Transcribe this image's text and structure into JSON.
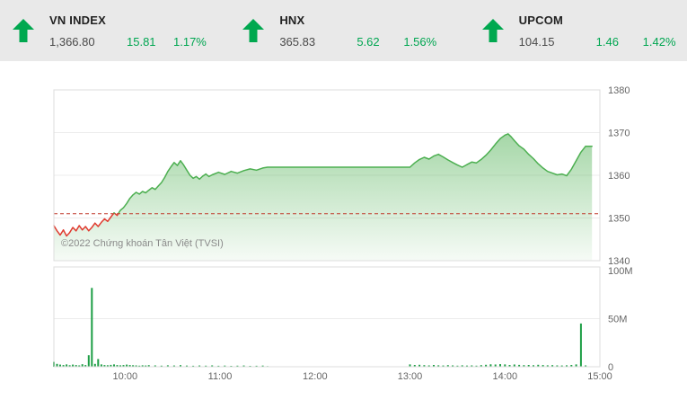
{
  "header": {
    "arrow_color": "#00a84f",
    "text_green": "#00a651",
    "indices": [
      {
        "name": "VN INDEX",
        "value": "1,366.80",
        "change": "15.81",
        "percent": "1.17%",
        "direction": "up"
      },
      {
        "name": "HNX",
        "value": "365.83",
        "change": "5.62",
        "percent": "1.56%",
        "direction": "up"
      },
      {
        "name": "UPCOM",
        "value": "104.15",
        "change": "1.46",
        "percent": "1.42%",
        "direction": "up"
      }
    ]
  },
  "watermark": "©2022 Chứng khoán Tân Việt (TVSI)",
  "chart_data": {
    "type": "area",
    "x_axis": {
      "total_minutes": 345,
      "ticks": [
        {
          "label": "10:00",
          "minutes": 45
        },
        {
          "label": "11:00",
          "minutes": 105
        },
        {
          "label": "12:00",
          "minutes": 165
        },
        {
          "label": "13:00",
          "minutes": 225
        },
        {
          "label": "14:00",
          "minutes": 285
        },
        {
          "label": "15:00",
          "minutes": 345
        }
      ]
    },
    "price_axis": {
      "min": 1340,
      "max": 1380,
      "ticks": [
        1340,
        1350,
        1360,
        1370,
        1380
      ]
    },
    "volume_axis": {
      "max": 100,
      "ticks": [
        {
          "label": "0",
          "value": 0
        },
        {
          "label": "50M",
          "value": 50
        },
        {
          "label": "100M",
          "value": 100
        }
      ]
    },
    "reference_price": 1350.99,
    "close_value": 1366.8,
    "price_series": [
      [
        0,
        1348.2
      ],
      [
        2,
        1347.0
      ],
      [
        4,
        1346.0
      ],
      [
        6,
        1347.2
      ],
      [
        8,
        1345.8
      ],
      [
        10,
        1346.6
      ],
      [
        12,
        1347.8
      ],
      [
        14,
        1347.0
      ],
      [
        16,
        1348.2
      ],
      [
        18,
        1347.2
      ],
      [
        20,
        1348.0
      ],
      [
        22,
        1347.0
      ],
      [
        24,
        1347.8
      ],
      [
        26,
        1348.8
      ],
      [
        28,
        1348.0
      ],
      [
        30,
        1349.0
      ],
      [
        32,
        1349.8
      ],
      [
        34,
        1349.2
      ],
      [
        36,
        1350.2
      ],
      [
        38,
        1351.2
      ],
      [
        40,
        1350.6
      ],
      [
        42,
        1351.8
      ],
      [
        44,
        1352.4
      ],
      [
        46,
        1353.4
      ],
      [
        48,
        1354.6
      ],
      [
        50,
        1355.4
      ],
      [
        52,
        1356.0
      ],
      [
        54,
        1355.6
      ],
      [
        56,
        1356.2
      ],
      [
        58,
        1355.9
      ],
      [
        60,
        1356.5
      ],
      [
        62,
        1357.1
      ],
      [
        64,
        1356.7
      ],
      [
        66,
        1357.5
      ],
      [
        68,
        1358.3
      ],
      [
        70,
        1359.5
      ],
      [
        72,
        1360.9
      ],
      [
        74,
        1362.0
      ],
      [
        76,
        1363.0
      ],
      [
        78,
        1362.3
      ],
      [
        80,
        1363.4
      ],
      [
        82,
        1362.4
      ],
      [
        84,
        1361.2
      ],
      [
        86,
        1360.0
      ],
      [
        88,
        1359.3
      ],
      [
        90,
        1359.7
      ],
      [
        92,
        1359.1
      ],
      [
        94,
        1359.8
      ],
      [
        96,
        1360.3
      ],
      [
        98,
        1359.7
      ],
      [
        100,
        1360.1
      ],
      [
        104,
        1360.7
      ],
      [
        108,
        1360.2
      ],
      [
        112,
        1360.9
      ],
      [
        116,
        1360.5
      ],
      [
        120,
        1361.1
      ],
      [
        124,
        1361.5
      ],
      [
        128,
        1361.2
      ],
      [
        132,
        1361.7
      ],
      [
        135,
        1361.9
      ],
      [
        225,
        1361.9
      ],
      [
        228,
        1362.9
      ],
      [
        231,
        1363.7
      ],
      [
        234,
        1364.2
      ],
      [
        237,
        1363.8
      ],
      [
        240,
        1364.5
      ],
      [
        243,
        1364.9
      ],
      [
        246,
        1364.3
      ],
      [
        249,
        1363.6
      ],
      [
        252,
        1363.0
      ],
      [
        255,
        1362.4
      ],
      [
        258,
        1361.9
      ],
      [
        261,
        1362.5
      ],
      [
        264,
        1363.1
      ],
      [
        267,
        1362.9
      ],
      [
        270,
        1363.7
      ],
      [
        273,
        1364.7
      ],
      [
        276,
        1365.9
      ],
      [
        279,
        1367.3
      ],
      [
        282,
        1368.6
      ],
      [
        285,
        1369.4
      ],
      [
        287,
        1369.7
      ],
      [
        289,
        1369.0
      ],
      [
        291,
        1368.1
      ],
      [
        294,
        1366.9
      ],
      [
        297,
        1366.1
      ],
      [
        300,
        1364.9
      ],
      [
        303,
        1363.9
      ],
      [
        306,
        1362.7
      ],
      [
        309,
        1361.7
      ],
      [
        312,
        1360.9
      ],
      [
        315,
        1360.5
      ],
      [
        318,
        1360.1
      ],
      [
        321,
        1360.3
      ],
      [
        324,
        1359.9
      ],
      [
        327,
        1361.4
      ],
      [
        330,
        1363.4
      ],
      [
        333,
        1365.4
      ],
      [
        336,
        1366.8
      ],
      [
        340,
        1366.8
      ]
    ],
    "volume_series": [
      [
        0,
        5
      ],
      [
        2,
        3
      ],
      [
        4,
        2.2
      ],
      [
        6,
        1.8
      ],
      [
        8,
        2.4
      ],
      [
        10,
        1.6
      ],
      [
        12,
        2.2
      ],
      [
        14,
        1.8
      ],
      [
        16,
        1.4
      ],
      [
        18,
        2.6
      ],
      [
        20,
        1.8
      ],
      [
        22,
        12
      ],
      [
        24,
        82
      ],
      [
        26,
        3
      ],
      [
        28,
        8
      ],
      [
        30,
        2.4
      ],
      [
        32,
        1.8
      ],
      [
        34,
        1.6
      ],
      [
        36,
        2
      ],
      [
        38,
        2.4
      ],
      [
        40,
        1.8
      ],
      [
        42,
        1.5
      ],
      [
        44,
        1.8
      ],
      [
        46,
        2.2
      ],
      [
        48,
        1.8
      ],
      [
        50,
        1.6
      ],
      [
        52,
        1.4
      ],
      [
        54,
        1.1
      ],
      [
        56,
        1.5
      ],
      [
        58,
        1.3
      ],
      [
        60,
        1.7
      ],
      [
        64,
        1.4
      ],
      [
        68,
        1.1
      ],
      [
        72,
        1.5
      ],
      [
        76,
        1.3
      ],
      [
        80,
        1.7
      ],
      [
        84,
        1.2
      ],
      [
        88,
        1
      ],
      [
        92,
        1.3
      ],
      [
        96,
        1.1
      ],
      [
        100,
        1.4
      ],
      [
        104,
        1
      ],
      [
        108,
        1.2
      ],
      [
        112,
        0.9
      ],
      [
        116,
        1.1
      ],
      [
        120,
        1.3
      ],
      [
        124,
        0.9
      ],
      [
        128,
        1
      ],
      [
        132,
        1.2
      ],
      [
        135,
        0.7
      ],
      [
        225,
        2.4
      ],
      [
        228,
        1.9
      ],
      [
        231,
        2.1
      ],
      [
        234,
        1.7
      ],
      [
        237,
        1.4
      ],
      [
        240,
        1.9
      ],
      [
        243,
        1.5
      ],
      [
        246,
        1.3
      ],
      [
        249,
        1.7
      ],
      [
        252,
        1.4
      ],
      [
        255,
        1.1
      ],
      [
        258,
        1.5
      ],
      [
        261,
        1.2
      ],
      [
        264,
        1.4
      ],
      [
        267,
        1.1
      ],
      [
        270,
        1.7
      ],
      [
        273,
        2.1
      ],
      [
        276,
        2.5
      ],
      [
        279,
        2.3
      ],
      [
        282,
        2.7
      ],
      [
        285,
        2.4
      ],
      [
        288,
        1.9
      ],
      [
        291,
        2.3
      ],
      [
        294,
        2
      ],
      [
        297,
        1.7
      ],
      [
        300,
        1.9
      ],
      [
        303,
        1.6
      ],
      [
        306,
        2.1
      ],
      [
        309,
        1.8
      ],
      [
        312,
        1.5
      ],
      [
        315,
        1.7
      ],
      [
        318,
        1.4
      ],
      [
        321,
        1.3
      ],
      [
        324,
        1.5
      ],
      [
        327,
        1.9
      ],
      [
        330,
        2.4
      ],
      [
        333,
        45
      ],
      [
        336,
        1.4
      ]
    ],
    "colors": {
      "line_green": "#4caf50",
      "line_red": "#e03c31",
      "reference_red": "#c0392b",
      "volume_green": "#1d9e45",
      "area_top": "rgba(76,175,80,0.50)",
      "area_bottom": "rgba(76,175,80,0.05)",
      "grid": "#ececec",
      "border": "#dddddd",
      "label": "#666666"
    }
  }
}
